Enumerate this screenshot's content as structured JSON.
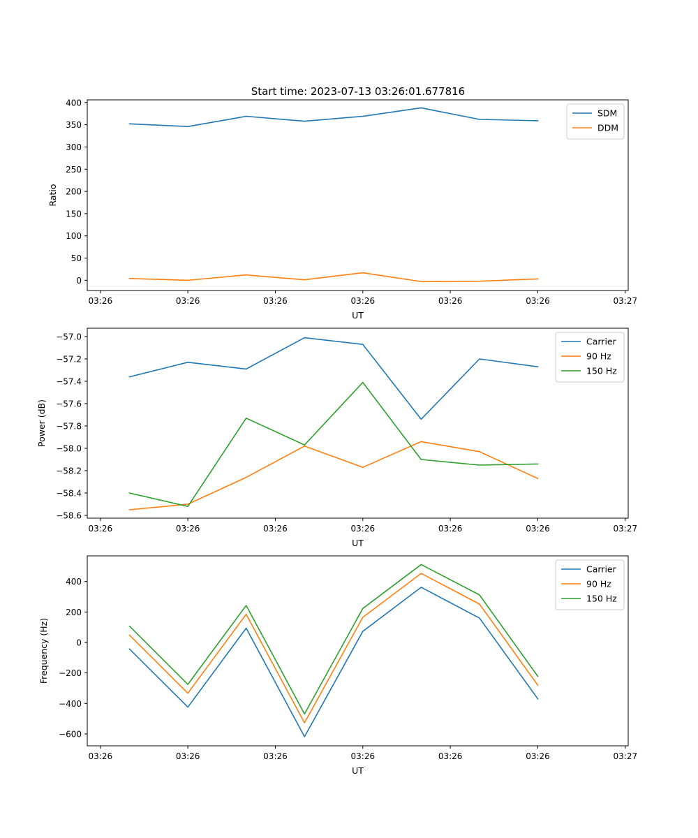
{
  "title": "Start time: 2023-07-13 03:26:01.677816",
  "chart_data": [
    {
      "type": "line",
      "xlabel": "UT",
      "ylabel": "Ratio",
      "x": [
        1,
        2,
        3,
        4,
        5,
        6,
        7,
        8
      ],
      "xlim": [
        0.275,
        9.55
      ],
      "xtick_positions": [
        0.5,
        2,
        3.5,
        5,
        6.5,
        8,
        9.5
      ],
      "xtick_labels": [
        "03:26",
        "03:26",
        "03:26",
        "03:26",
        "03:26",
        "03:26",
        "03:27"
      ],
      "ylim": [
        -23,
        406
      ],
      "yticks": [
        0,
        50,
        100,
        150,
        200,
        250,
        300,
        350,
        400
      ],
      "legend_location": "upper right",
      "series": [
        {
          "name": "SDM",
          "color": "#1f77b4",
          "values": [
            352,
            346,
            369,
            358,
            369,
            388,
            362,
            359
          ]
        },
        {
          "name": "DDM",
          "color": "#ff7f0e",
          "values": [
            4,
            0,
            12,
            1,
            17,
            -3,
            -2,
            3
          ]
        }
      ]
    },
    {
      "type": "line",
      "xlabel": "UT",
      "ylabel": "Power (dB)",
      "x": [
        1,
        2,
        3,
        4,
        5,
        6,
        7,
        8
      ],
      "xlim": [
        0.275,
        9.55
      ],
      "xtick_positions": [
        0.5,
        2,
        3.5,
        5,
        6.5,
        8,
        9.5
      ],
      "xtick_labels": [
        "03:26",
        "03:26",
        "03:26",
        "03:26",
        "03:26",
        "03:26",
        "03:27"
      ],
      "ylim": [
        -58.625,
        -56.925
      ],
      "yticks": [
        -58.6,
        -58.4,
        -58.2,
        -58.0,
        -57.8,
        -57.6,
        -57.4,
        -57.2,
        -57.0
      ],
      "ytick_labels": [
        "−58.6",
        "−58.4",
        "−58.2",
        "−58.0",
        "−57.8",
        "−57.6",
        "−57.4",
        "−57.2",
        "−57.0"
      ],
      "legend_location": "upper right",
      "series": [
        {
          "name": "Carrier",
          "color": "#1f77b4",
          "values": [
            -57.36,
            -57.23,
            -57.29,
            -57.01,
            -57.07,
            -57.74,
            -57.2,
            -57.27
          ]
        },
        {
          "name": "90 Hz",
          "color": "#ff7f0e",
          "values": [
            -58.55,
            -58.5,
            -58.26,
            -57.98,
            -58.17,
            -57.94,
            -58.03,
            -58.27
          ]
        },
        {
          "name": "150 Hz",
          "color": "#2ca02c",
          "values": [
            -58.4,
            -58.52,
            -57.73,
            -57.97,
            -57.41,
            -58.1,
            -58.15,
            -58.14
          ]
        }
      ]
    },
    {
      "type": "line",
      "xlabel": "UT",
      "ylabel": "Frequency (Hz)",
      "x": [
        1,
        2,
        3,
        4,
        5,
        6,
        7,
        8
      ],
      "xlim": [
        0.275,
        9.55
      ],
      "xtick_positions": [
        0.5,
        2,
        3.5,
        5,
        6.5,
        8,
        9.5
      ],
      "xtick_labels": [
        "03:26",
        "03:26",
        "03:26",
        "03:26",
        "03:26",
        "03:26",
        "03:27"
      ],
      "ylim": [
        -678,
        568
      ],
      "yticks": [
        -600,
        -400,
        -200,
        0,
        200,
        400
      ],
      "ytick_labels": [
        "−600",
        "−400",
        "−200",
        "0",
        "200",
        "400"
      ],
      "legend_location": "upper right",
      "series": [
        {
          "name": "Carrier",
          "color": "#1f77b4",
          "values": [
            -43,
            -424,
            94,
            -618,
            73,
            362,
            160,
            -370
          ]
        },
        {
          "name": "90 Hz",
          "color": "#ff7f0e",
          "values": [
            48,
            -333,
            185,
            -527,
            165,
            453,
            252,
            -280
          ]
        },
        {
          "name": "150 Hz",
          "color": "#2ca02c",
          "values": [
            107,
            -275,
            243,
            -469,
            223,
            511,
            312,
            -222
          ]
        }
      ]
    }
  ]
}
